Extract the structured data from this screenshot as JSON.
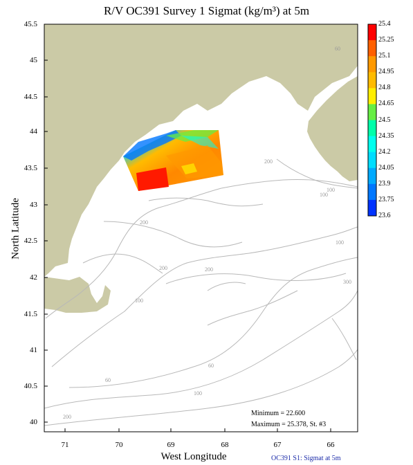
{
  "title": "R/V OC391 Survey 1 Sigmat (kg/m³) at 5m",
  "axes": {
    "xlabel": "West Longitude",
    "ylabel": "North Latitude",
    "x_ticks": [
      "71",
      "70",
      "69",
      "68",
      "67",
      "66"
    ],
    "y_ticks": [
      "45.5",
      "45",
      "44.5",
      "44",
      "43.5",
      "43",
      "42.5",
      "42",
      "41.5",
      "41",
      "40.5",
      "40"
    ]
  },
  "colorbar": {
    "labels": [
      "25.4",
      "25.25",
      "25.1",
      "24.95",
      "24.8",
      "24.65",
      "24.5",
      "24.35",
      "24.2",
      "24.05",
      "23.9",
      "23.75",
      "23.6"
    ],
    "colors": [
      "#ff0000",
      "#ff6000",
      "#ff9900",
      "#ffbb00",
      "#ffee00",
      "#66ee44",
      "#00ffaa",
      "#00ffee",
      "#00ddff",
      "#00aaff",
      "#0077ff",
      "#0033ff"
    ]
  },
  "bathymetry_labels": [
    "60",
    "100",
    "100",
    "200",
    "200",
    "200",
    "100",
    "200",
    "300",
    "100",
    "60",
    "60",
    "100",
    "200"
  ],
  "stats": {
    "minimum": "Minimum = 22.600",
    "maximum": "Maximum = 25.378, St. #3"
  },
  "credit": "OC391 S1: Sigmat at 5m",
  "colors": {
    "land": "#cbcaa6",
    "contour": "#b8b8b8",
    "frame": "#000000"
  }
}
